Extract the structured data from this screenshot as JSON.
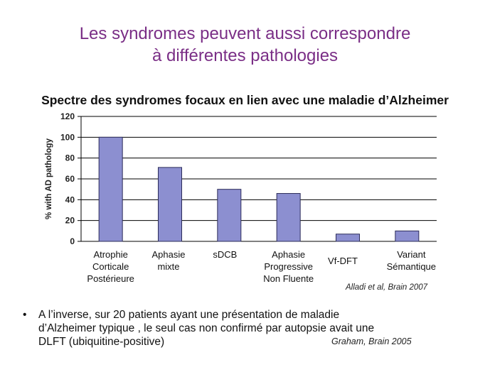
{
  "slide": {
    "title_lines": [
      "Les syndromes peuvent aussi correspondre",
      "à différentes pathologies"
    ]
  },
  "chart_data": {
    "type": "bar",
    "title": "Spectre des syndromes focaux en lien avec une maladie d’Alzheimer",
    "ylabel": "% with AD pathology",
    "xlabel": "",
    "ylim": [
      0,
      120
    ],
    "yticks": [
      0,
      20,
      40,
      60,
      80,
      100,
      120
    ],
    "grid": true,
    "categories": [
      [
        "Atrophie",
        "Corticale",
        "Postérieure"
      ],
      [
        "Aphasie",
        "mixte"
      ],
      [
        "sDCB"
      ],
      [
        "Aphasie",
        "Progressive",
        "Non Fluente"
      ],
      [
        "Vf-DFT"
      ],
      [
        "Variant",
        "Sémantique"
      ]
    ],
    "values": [
      100,
      71,
      50,
      46,
      7,
      10
    ],
    "bar_color": "#8c8fd0"
  },
  "citation_chart": "Alladi et al, Brain 2007",
  "bullet": {
    "symbol": "•",
    "lines": [
      "A l’inverse, sur 20 patients ayant une présentation de maladie",
      "d’Alzheimer typique , le seul cas non confirmé par autopsie avait une",
      "DLFT (ubiquitine-positive)"
    ],
    "citation": "Graham, Brain 2005"
  }
}
